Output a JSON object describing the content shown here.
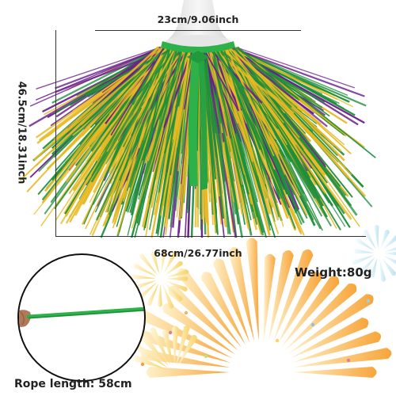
{
  "dimensions": {
    "neck_width": "23cm/9.06inch",
    "length": "46.5cm/18.31inch",
    "width": "68cm/26.77inch",
    "weight": "Weight:80g",
    "rope_length": "Rope length: 58cm"
  },
  "colors": {
    "gold": "#e8b923",
    "green": "#1f8f3a",
    "purple": "#6a1d8c",
    "ribbon": "#2db24a",
    "firework_orange": "#f7a53a",
    "firework_yellow": "#f6d46a",
    "firework_blue": "#bfe3f0",
    "mannequin": "#eeeeee"
  }
}
